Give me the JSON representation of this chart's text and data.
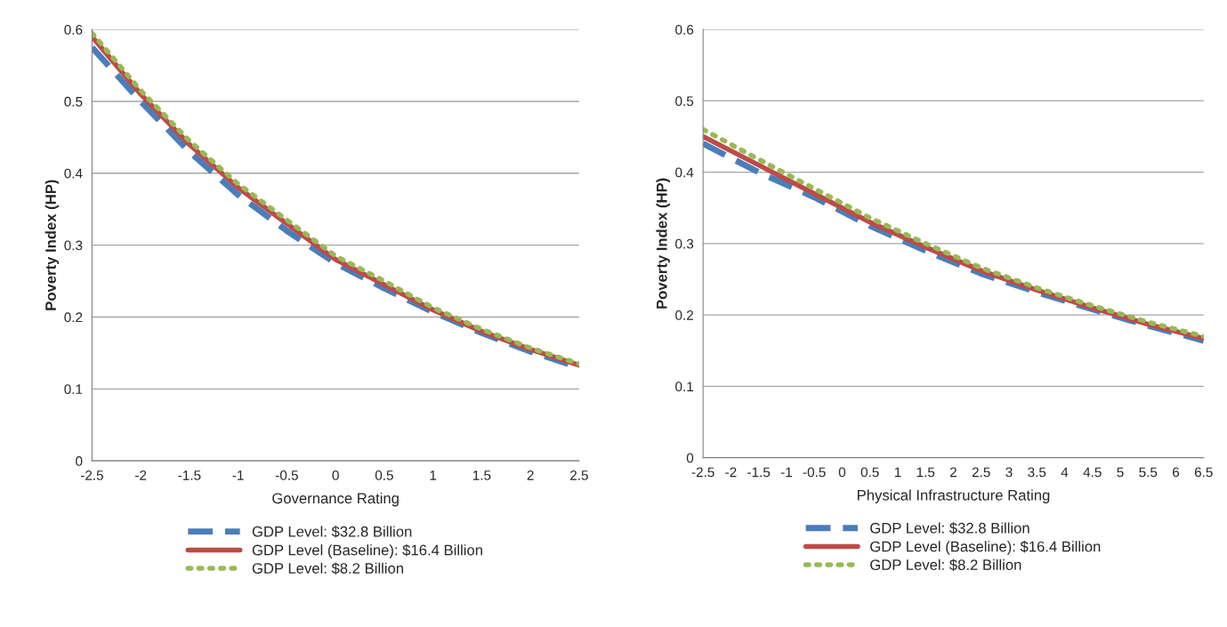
{
  "chart_data": [
    {
      "type": "line",
      "xlabel": "Governance Rating",
      "ylabel": "Poverty Index (HP)",
      "x": [
        -2.5,
        -2,
        -1.5,
        -1,
        -0.5,
        0,
        0.5,
        1,
        1.5,
        2,
        2.5
      ],
      "xlim": [
        -2.5,
        2.5
      ],
      "xticks": [
        -2.5,
        -2,
        -1.5,
        -1,
        -0.5,
        0,
        0.5,
        1,
        1.5,
        2,
        2.5
      ],
      "ylim": [
        0,
        0.6
      ],
      "yticks": [
        0,
        0.1,
        0.2,
        0.3,
        0.4,
        0.5,
        0.6
      ],
      "grid": "y",
      "legend": "bottom",
      "series": [
        {
          "name": "GDP Level: $32.8 Billion",
          "color": "#4a7ebb",
          "line_style": "dashed",
          "values": [
            0.575,
            0.5,
            0.43,
            0.37,
            0.32,
            0.275,
            0.24,
            0.207,
            0.178,
            0.152,
            0.13
          ]
        },
        {
          "name": "GDP Level (Baseline): $16.4 Billion",
          "color": "#be4b48",
          "line_style": "solid",
          "values": [
            0.59,
            0.51,
            0.44,
            0.38,
            0.33,
            0.28,
            0.245,
            0.21,
            0.18,
            0.155,
            0.133
          ]
        },
        {
          "name": "GDP Level: $8.2 Billion",
          "color": "#98b954",
          "line_style": "dotted",
          "values": [
            0.595,
            0.515,
            0.445,
            0.385,
            0.335,
            0.285,
            0.25,
            0.213,
            0.183,
            0.157,
            0.135
          ]
        }
      ]
    },
    {
      "type": "line",
      "xlabel": "Physical Infrastructure Rating",
      "ylabel": "Poverty Index (HP)",
      "x": [
        -2.5,
        -1.5,
        -0.5,
        0.5,
        1.5,
        2.5,
        3.5,
        4.5,
        5.5,
        6.5
      ],
      "xlim": [
        -2.5,
        6.5
      ],
      "xticks": [
        -2.5,
        -2,
        -1.5,
        -1,
        -0.5,
        0,
        0.5,
        1,
        1.5,
        2,
        2.5,
        3,
        3.5,
        4,
        4.5,
        5,
        5.5,
        6,
        6.5
      ],
      "ylim": [
        0,
        0.6
      ],
      "yticks": [
        0,
        0.1,
        0.2,
        0.3,
        0.4,
        0.5,
        0.6
      ],
      "grid": "y",
      "legend": "bottom",
      "series": [
        {
          "name": "GDP Level: $32.8 Billion",
          "color": "#4a7ebb",
          "line_style": "dashed",
          "values": [
            0.44,
            0.4,
            0.365,
            0.325,
            0.29,
            0.258,
            0.232,
            0.208,
            0.185,
            0.164
          ]
        },
        {
          "name": "GDP Level (Baseline): $16.4 Billion",
          "color": "#be4b48",
          "line_style": "solid",
          "values": [
            0.45,
            0.41,
            0.37,
            0.33,
            0.295,
            0.262,
            0.235,
            0.21,
            0.187,
            0.167
          ]
        },
        {
          "name": "GDP Level: $8.2 Billion",
          "color": "#98b954",
          "line_style": "dotted",
          "values": [
            0.46,
            0.418,
            0.377,
            0.336,
            0.3,
            0.266,
            0.238,
            0.213,
            0.19,
            0.17
          ]
        }
      ]
    }
  ]
}
